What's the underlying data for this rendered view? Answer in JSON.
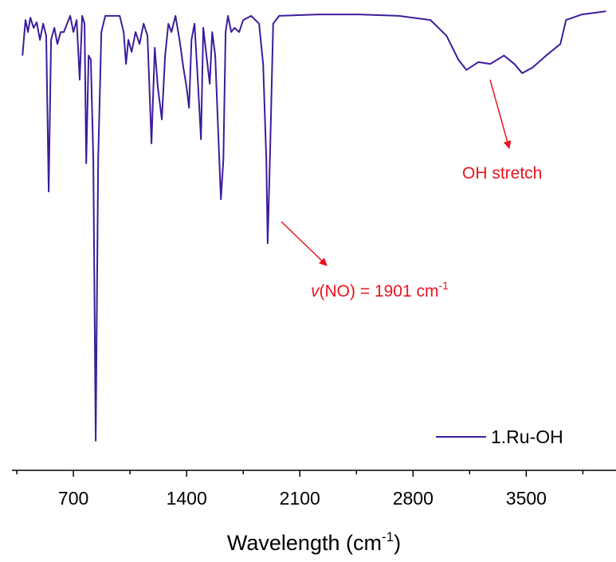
{
  "chart_data": {
    "type": "line",
    "xlabel": [
      "Wavelength (cm",
      "-1",
      ")"
    ],
    "x": [
      385,
      404,
      419,
      434,
      454,
      473,
      493,
      513,
      532,
      547,
      562,
      582,
      601,
      621,
      641,
      661,
      680,
      700,
      720,
      739,
      754,
      769,
      779,
      794,
      808,
      823,
      838,
      853,
      873,
      897,
      937,
      986,
      1011,
      1025,
      1040,
      1060,
      1084,
      1109,
      1134,
      1158,
      1183,
      1203,
      1222,
      1247,
      1267,
      1287,
      1306,
      1331,
      1356,
      1380,
      1400,
      1415,
      1430,
      1449,
      1469,
      1489,
      1503,
      1523,
      1543,
      1558,
      1577,
      1592,
      1612,
      1627,
      1641,
      1656,
      1676,
      1696,
      1725,
      1750,
      1799,
      1848,
      1873,
      1893,
      1901,
      1915,
      1935,
      1972,
      2218,
      2465,
      2711,
      2908,
      3007,
      3081,
      3130,
      3204,
      3278,
      3362,
      3426,
      3475,
      3539,
      3623,
      3711,
      3746,
      3845,
      3993
    ],
    "series": [
      {
        "name": "1.Ru-OH",
        "color": "#3d1c9c",
        "values": [
          89.7,
          97.4,
          94.8,
          97.9,
          95.7,
          96.9,
          93.1,
          96.6,
          94.0,
          60.3,
          93.1,
          95.7,
          92.2,
          94.8,
          94.8,
          96.6,
          98.3,
          94.8,
          97.4,
          84.5,
          98.3,
          96.6,
          66.4,
          89.7,
          88.8,
          67.2,
          6.4,
          67.2,
          94.8,
          98.3,
          98.3,
          98.3,
          94.8,
          87.9,
          93.1,
          90.5,
          94.8,
          92.2,
          96.6,
          94.0,
          70.7,
          91.4,
          82.8,
          75.9,
          89.7,
          96.6,
          94.8,
          98.3,
          93.1,
          87.1,
          82.8,
          78.4,
          93.1,
          96.6,
          84.5,
          71.6,
          95.7,
          89.7,
          83.6,
          94.8,
          89.7,
          75.9,
          58.6,
          67.2,
          94.8,
          98.3,
          94.8,
          95.7,
          94.8,
          97.4,
          98.3,
          96.6,
          87.9,
          67.2,
          49.1,
          67.2,
          96.6,
          98.3,
          98.6,
          98.6,
          98.3,
          97.4,
          94.0,
          88.8,
          86.6,
          88.3,
          87.9,
          89.7,
          87.9,
          85.9,
          87.1,
          89.7,
          92.2,
          97.4,
          98.6,
          99.3
        ]
      }
    ],
    "xlim": [
      320,
      4050
    ],
    "xticks": [
      700,
      1400,
      2100,
      2800,
      3500
    ],
    "xminorticks": [
      350,
      1050,
      1750,
      2450,
      3150,
      3850
    ],
    "ylim": [
      0,
      100
    ],
    "annotations": [
      {
        "parts": [
          "OH stretch"
        ],
        "color": "#e8141e"
      },
      {
        "parts": [
          "v",
          "(NO) = 1901 cm",
          "-1"
        ],
        "color": "#e8141e"
      }
    ],
    "legend": "lower right"
  }
}
